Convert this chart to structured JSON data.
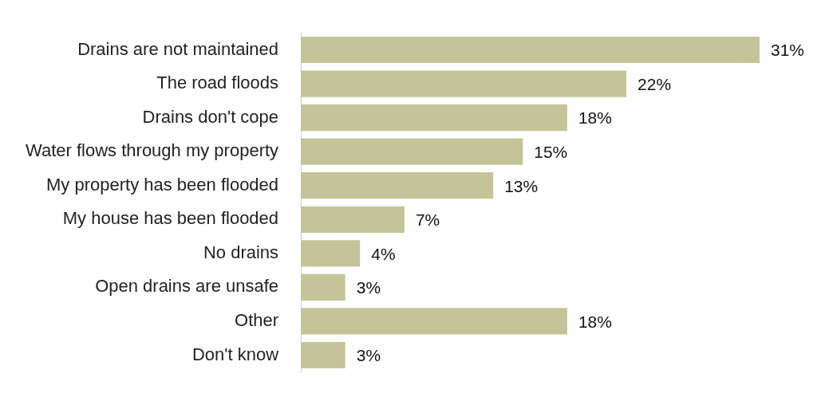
{
  "chart_data": {
    "type": "bar",
    "orientation": "horizontal",
    "categories": [
      "Drains are not maintained",
      "The road floods",
      "Drains don't cope",
      "Water flows through my property",
      "My property has been flooded",
      "My house has been flooded",
      "No drains",
      "Open drains are unsafe",
      "Other",
      "Don't know"
    ],
    "values": [
      31,
      22,
      18,
      15,
      13,
      7,
      4,
      3,
      18,
      3
    ],
    "value_labels": [
      "31%",
      "22%",
      "18%",
      "15%",
      "13%",
      "7%",
      "4%",
      "3%",
      "18%",
      "3%"
    ],
    "color": "#c4c49a"
  }
}
